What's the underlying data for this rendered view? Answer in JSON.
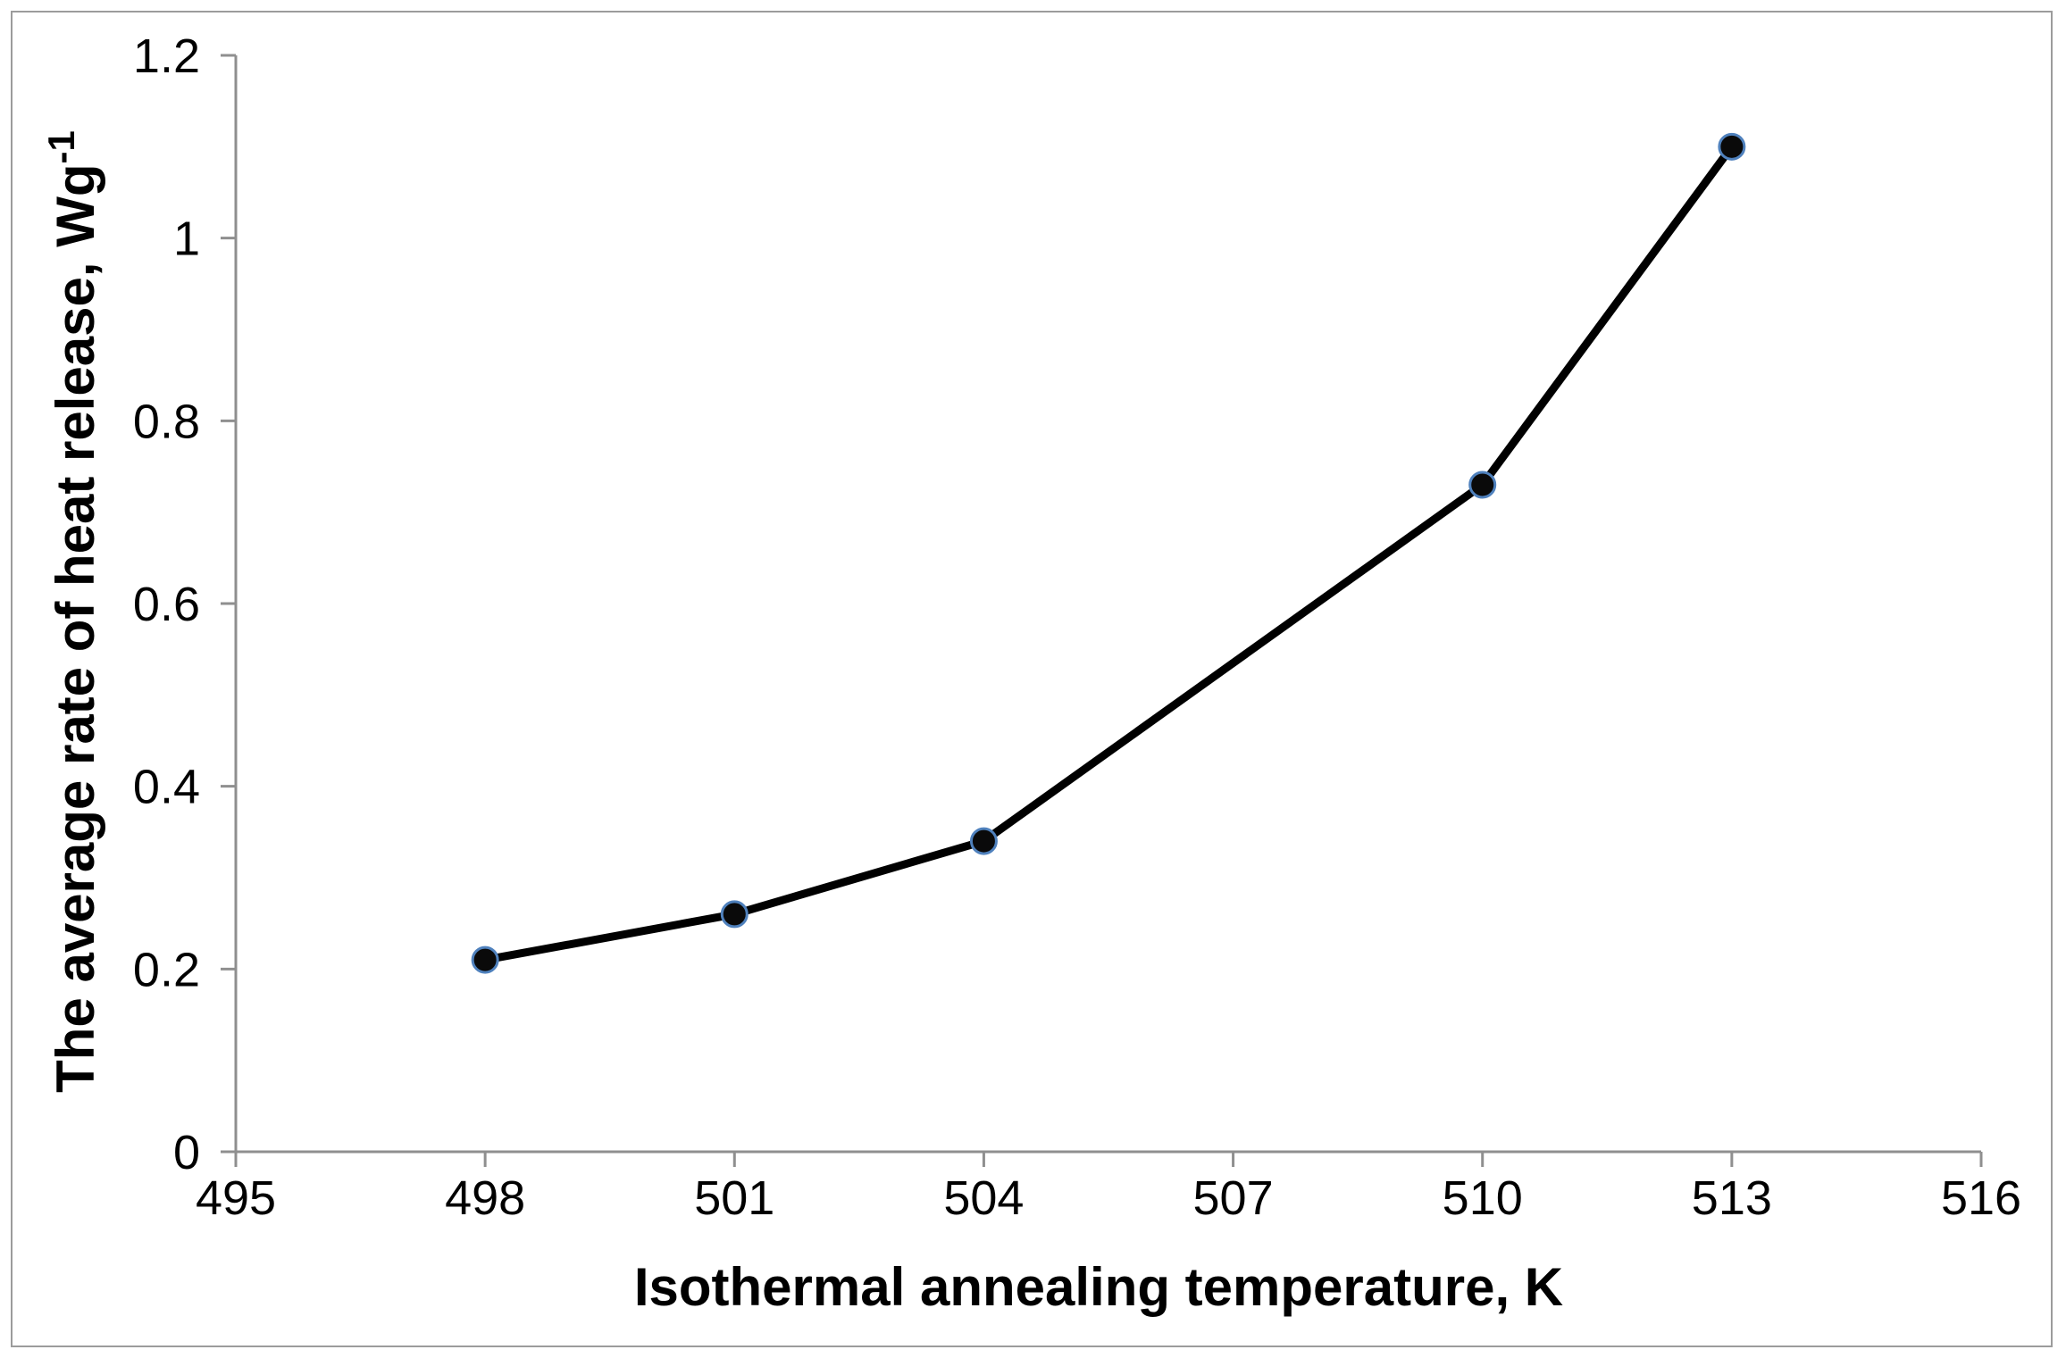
{
  "chart_data": {
    "type": "line",
    "title": "",
    "xlabel": "Isothermal annealing temperature, K",
    "ylabel": "The average rate of heat release, Wg",
    "ylabel_superscript": "-1",
    "x": [
      498,
      501,
      504,
      510,
      513
    ],
    "y": [
      0.21,
      0.26,
      0.34,
      0.73,
      1.1
    ],
    "xlim": [
      495,
      516
    ],
    "ylim": [
      0,
      1.2
    ],
    "x_tick_values": [
      495,
      498,
      501,
      504,
      507,
      510,
      513,
      516
    ],
    "x_tick_labels": [
      "495",
      "498",
      "501",
      "504",
      "507",
      "510",
      "513",
      "516"
    ],
    "y_tick_values": [
      0,
      0.2,
      0.4,
      0.6,
      0.8,
      1,
      1.2
    ],
    "y_tick_labels": [
      "0",
      "0.2",
      "0.4",
      "0.6",
      "0.8",
      "1",
      "1.2"
    ],
    "grid": false,
    "legend_position": "none",
    "marker": "circle",
    "colors": {
      "line": "#000000",
      "marker_fill": "#0a0a0a",
      "marker_edge": "#4f81bd",
      "axis": "#8f8f8f",
      "tick_text": "#000000",
      "title_text": "#000000",
      "frame_border": "#9c9c9c",
      "background": "#ffffff"
    }
  }
}
